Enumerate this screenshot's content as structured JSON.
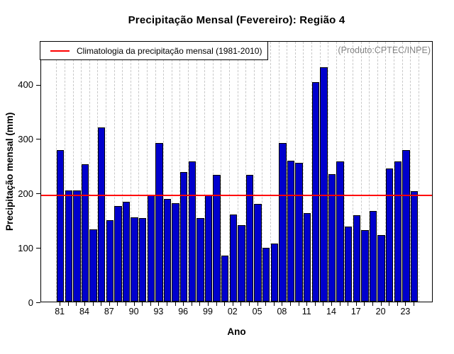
{
  "chart_data": {
    "type": "bar",
    "title": "Precipitação Mensal (Fevereiro): Região 4",
    "xlabel": "Ano",
    "ylabel": "Precipitação mensal (mm)",
    "ylim": [
      0,
      480
    ],
    "yticks": [
      0,
      100,
      200,
      300,
      400
    ],
    "grid": "dashed-vertical",
    "legend_position": "top-left",
    "annotation": "(Produto:CPTEC/INPE)",
    "bar_color": "#0000CD",
    "years": [
      1981,
      1982,
      1983,
      1984,
      1985,
      1986,
      1987,
      1988,
      1989,
      1990,
      1991,
      1992,
      1993,
      1994,
      1995,
      1996,
      1997,
      1998,
      1999,
      2000,
      2001,
      2002,
      2003,
      2004,
      2005,
      2006,
      2007,
      2008,
      2009,
      2010,
      2011,
      2012,
      2013,
      2014,
      2015,
      2016,
      2017,
      2018,
      2019,
      2020,
      2021,
      2022,
      2023,
      2024
    ],
    "values": [
      278,
      204,
      204,
      252,
      133,
      320,
      150,
      176,
      184,
      155,
      154,
      197,
      292,
      189,
      181,
      238,
      257,
      154,
      197,
      233,
      84,
      160,
      140,
      233,
      180,
      99,
      107,
      291,
      259,
      255,
      162,
      403,
      430,
      234,
      257,
      138,
      159,
      131,
      167,
      122,
      244,
      258,
      279,
      203
    ],
    "x_tick_labels": [
      "81",
      "84",
      "87",
      "90",
      "93",
      "96",
      "99",
      "02",
      "05",
      "08",
      "11",
      "14",
      "17",
      "20",
      "23"
    ],
    "x_tick_every": 3,
    "climatology": {
      "label": "Climatologia da precipitação mensal (1981-2010)",
      "value": 198,
      "color": "#ff0000"
    }
  }
}
